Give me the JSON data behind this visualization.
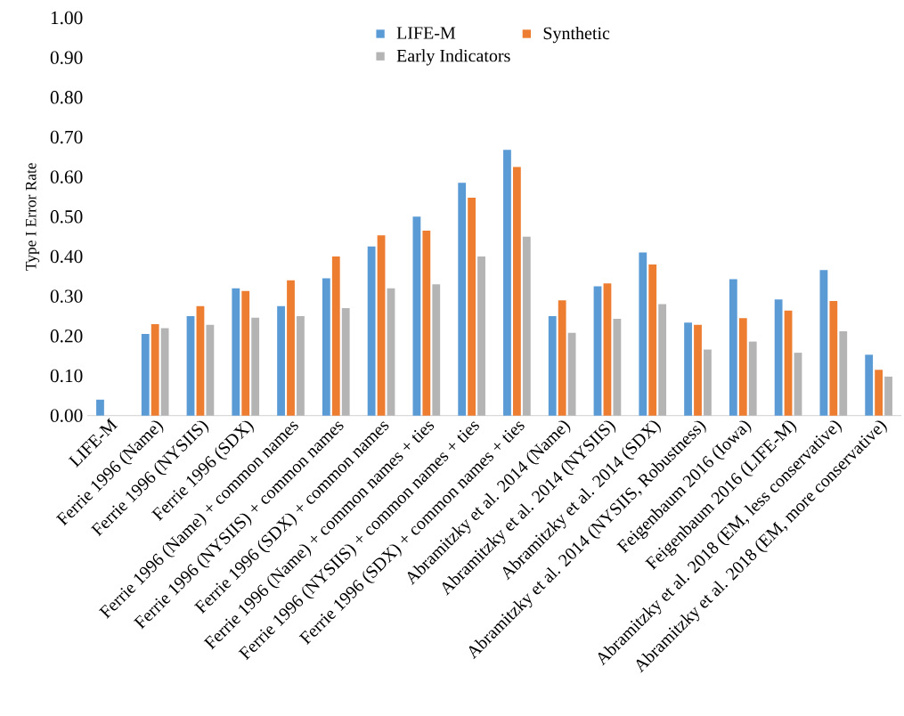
{
  "chart_data": {
    "type": "bar",
    "ylabel": "Type I Error Rate",
    "categories": [
      "LIFE-M",
      "Ferrie 1996 (Name)",
      "Ferrie 1996 (NYSIIS)",
      "Ferrie 1996 (SDX)",
      "Ferrie 1996 (Name) + common names",
      "Ferrie 1996 (NYSIIS) + common names",
      "Ferrie 1996 (SDX) + common names",
      "Ferrie 1996 (Name) + common names + ties",
      "Ferrie 1996 (NYSIIS) + common names + ties",
      "Ferrie 1996 (SDX) + common names + ties",
      "Abramitzky et al. 2014 (Name)",
      "Abramitzky et al. 2014 (NYSIIS)",
      "Abramitzky et al. 2014 (SDX)",
      "Abramitzky et al. 2014 (NYSIIS, Robustness)",
      "Feigenbaum 2016 (Iowa)",
      "Feigenbaum 2016 (LIFE-M)",
      "Abramitzky et al. 2018 (EM, less conservative)",
      "Abramitzky et al. 2018 (EM, more conservative)"
    ],
    "series": [
      {
        "name": "LIFE-M",
        "color": "#5b9bd5",
        "values": [
          0.04,
          0.205,
          0.25,
          0.32,
          0.275,
          0.345,
          0.425,
          0.5,
          0.585,
          0.668,
          0.25,
          0.325,
          0.41,
          0.234,
          0.343,
          0.292,
          0.366,
          0.153
        ]
      },
      {
        "name": "Synthetic",
        "color": "#ed7d31",
        "values": [
          null,
          0.23,
          0.275,
          0.313,
          0.34,
          0.4,
          0.453,
          0.465,
          0.548,
          0.625,
          0.29,
          0.332,
          0.38,
          0.228,
          0.245,
          0.264,
          0.288,
          0.115
        ]
      },
      {
        "name": "Early Indicators",
        "color": "#b4b4b4",
        "values": [
          null,
          0.22,
          0.228,
          0.246,
          0.25,
          0.27,
          0.32,
          0.33,
          0.4,
          0.45,
          0.208,
          0.243,
          0.28,
          0.166,
          0.186,
          0.158,
          0.212,
          0.098
        ]
      }
    ],
    "ylim": [
      0,
      1
    ],
    "yticks": [
      {
        "value": 0,
        "label": "0.00"
      },
      {
        "value": 0.1,
        "label": "0.10"
      },
      {
        "value": 0.2,
        "label": "0.20"
      },
      {
        "value": 0.3,
        "label": "0.30"
      },
      {
        "value": 0.4,
        "label": "0.40"
      },
      {
        "value": 0.5,
        "label": "0.50"
      },
      {
        "value": 0.6,
        "label": "0.60"
      },
      {
        "value": 0.7,
        "label": "0.70"
      },
      {
        "value": 0.8,
        "label": "0.80"
      },
      {
        "value": 0.9,
        "label": "0.90"
      },
      {
        "value": 1,
        "label": "1.00"
      }
    ],
    "grid": false,
    "legend": "top"
  }
}
